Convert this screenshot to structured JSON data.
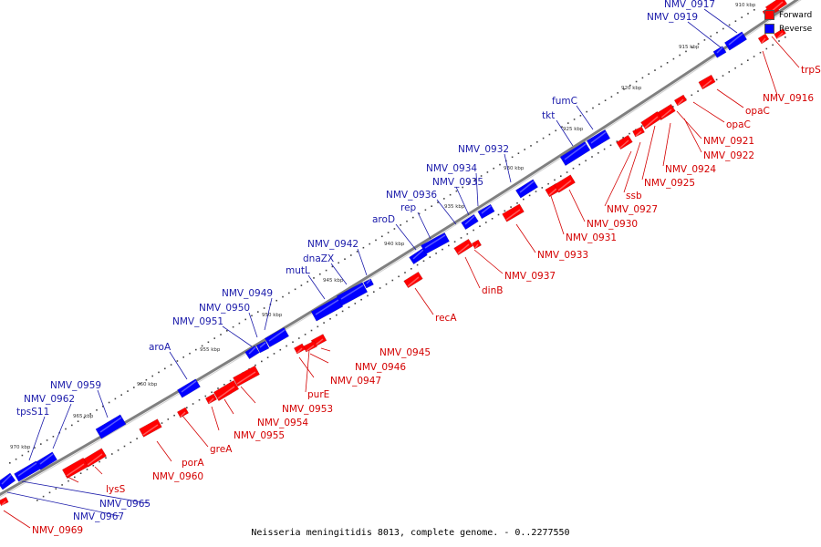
{
  "caption": "Neisseria meningitidis 8013, complete genome. - 0..2277550",
  "legend": [
    {
      "label": "Forward",
      "color": "#ff0000"
    },
    {
      "label": "Reverse",
      "color": "#0000ff"
    }
  ],
  "colors": {
    "forward": "#ff0000",
    "reverse": "#0000ff",
    "forward_label": "#d40000",
    "reverse_label": "#1a1aaa",
    "backbone": "#808080"
  },
  "ruler": {
    "unit": "kbp",
    "view_start_kbp": 910,
    "view_end_kbp": 972,
    "ticks": [
      "910 kbp",
      "915 kbp",
      "920 kbp",
      "925 kbp",
      "930 kbp",
      "935 kbp",
      "940 kbp",
      "945 kbp",
      "950 kbp",
      "955 kbp",
      "960 kbp",
      "965 kbp",
      "970 kbp"
    ]
  },
  "genes": [
    {
      "name": "NMV_0917",
      "strand": "reverse"
    },
    {
      "name": "NMV_0919",
      "strand": "reverse"
    },
    {
      "name": "fumC",
      "strand": "reverse"
    },
    {
      "name": "tkt",
      "strand": "reverse"
    },
    {
      "name": "NMV_0932",
      "strand": "reverse"
    },
    {
      "name": "NMV_0934",
      "strand": "reverse"
    },
    {
      "name": "NMV_0935",
      "strand": "reverse"
    },
    {
      "name": "NMV_0936",
      "strand": "reverse"
    },
    {
      "name": "rep",
      "strand": "reverse"
    },
    {
      "name": "aroD",
      "strand": "reverse"
    },
    {
      "name": "NMV_0942",
      "strand": "reverse"
    },
    {
      "name": "dnaZX",
      "strand": "reverse"
    },
    {
      "name": "mutL",
      "strand": "reverse"
    },
    {
      "name": "NMV_0949",
      "strand": "reverse"
    },
    {
      "name": "NMV_0950",
      "strand": "reverse"
    },
    {
      "name": "NMV_0951",
      "strand": "reverse"
    },
    {
      "name": "aroA",
      "strand": "reverse"
    },
    {
      "name": "NMV_0959",
      "strand": "reverse"
    },
    {
      "name": "NMV_0962",
      "strand": "reverse"
    },
    {
      "name": "tpsS11",
      "strand": "reverse"
    },
    {
      "name": "NMV_0965",
      "strand": "reverse"
    },
    {
      "name": "NMV_0967",
      "strand": "reverse"
    },
    {
      "name": "trpS",
      "strand": "forward"
    },
    {
      "name": "NMV_0916",
      "strand": "forward"
    },
    {
      "name": "opaC",
      "strand": "forward"
    },
    {
      "name": "opaC",
      "strand": "forward"
    },
    {
      "name": "NMV_0921",
      "strand": "forward"
    },
    {
      "name": "NMV_0922",
      "strand": "forward"
    },
    {
      "name": "NMV_0924",
      "strand": "forward"
    },
    {
      "name": "NMV_0925",
      "strand": "forward"
    },
    {
      "name": "NMV_0927",
      "strand": "forward"
    },
    {
      "name": "ssb",
      "strand": "forward"
    },
    {
      "name": "NMV_0930",
      "strand": "forward"
    },
    {
      "name": "NMV_0931",
      "strand": "forward"
    },
    {
      "name": "NMV_0933",
      "strand": "forward"
    },
    {
      "name": "NMV_0937",
      "strand": "forward"
    },
    {
      "name": "dinB",
      "strand": "forward"
    },
    {
      "name": "recA",
      "strand": "forward"
    },
    {
      "name": "NMV_0945",
      "strand": "forward"
    },
    {
      "name": "NMV_0946",
      "strand": "forward"
    },
    {
      "name": "NMV_0947",
      "strand": "forward"
    },
    {
      "name": "purE",
      "strand": "forward"
    },
    {
      "name": "NMV_0953",
      "strand": "forward"
    },
    {
      "name": "NMV_0954",
      "strand": "forward"
    },
    {
      "name": "NMV_0955",
      "strand": "forward"
    },
    {
      "name": "greA",
      "strand": "forward"
    },
    {
      "name": "porA",
      "strand": "forward"
    },
    {
      "name": "NMV_0960",
      "strand": "forward"
    },
    {
      "name": "lysS",
      "strand": "forward"
    },
    {
      "name": "NMV_0969",
      "strand": "forward"
    }
  ]
}
